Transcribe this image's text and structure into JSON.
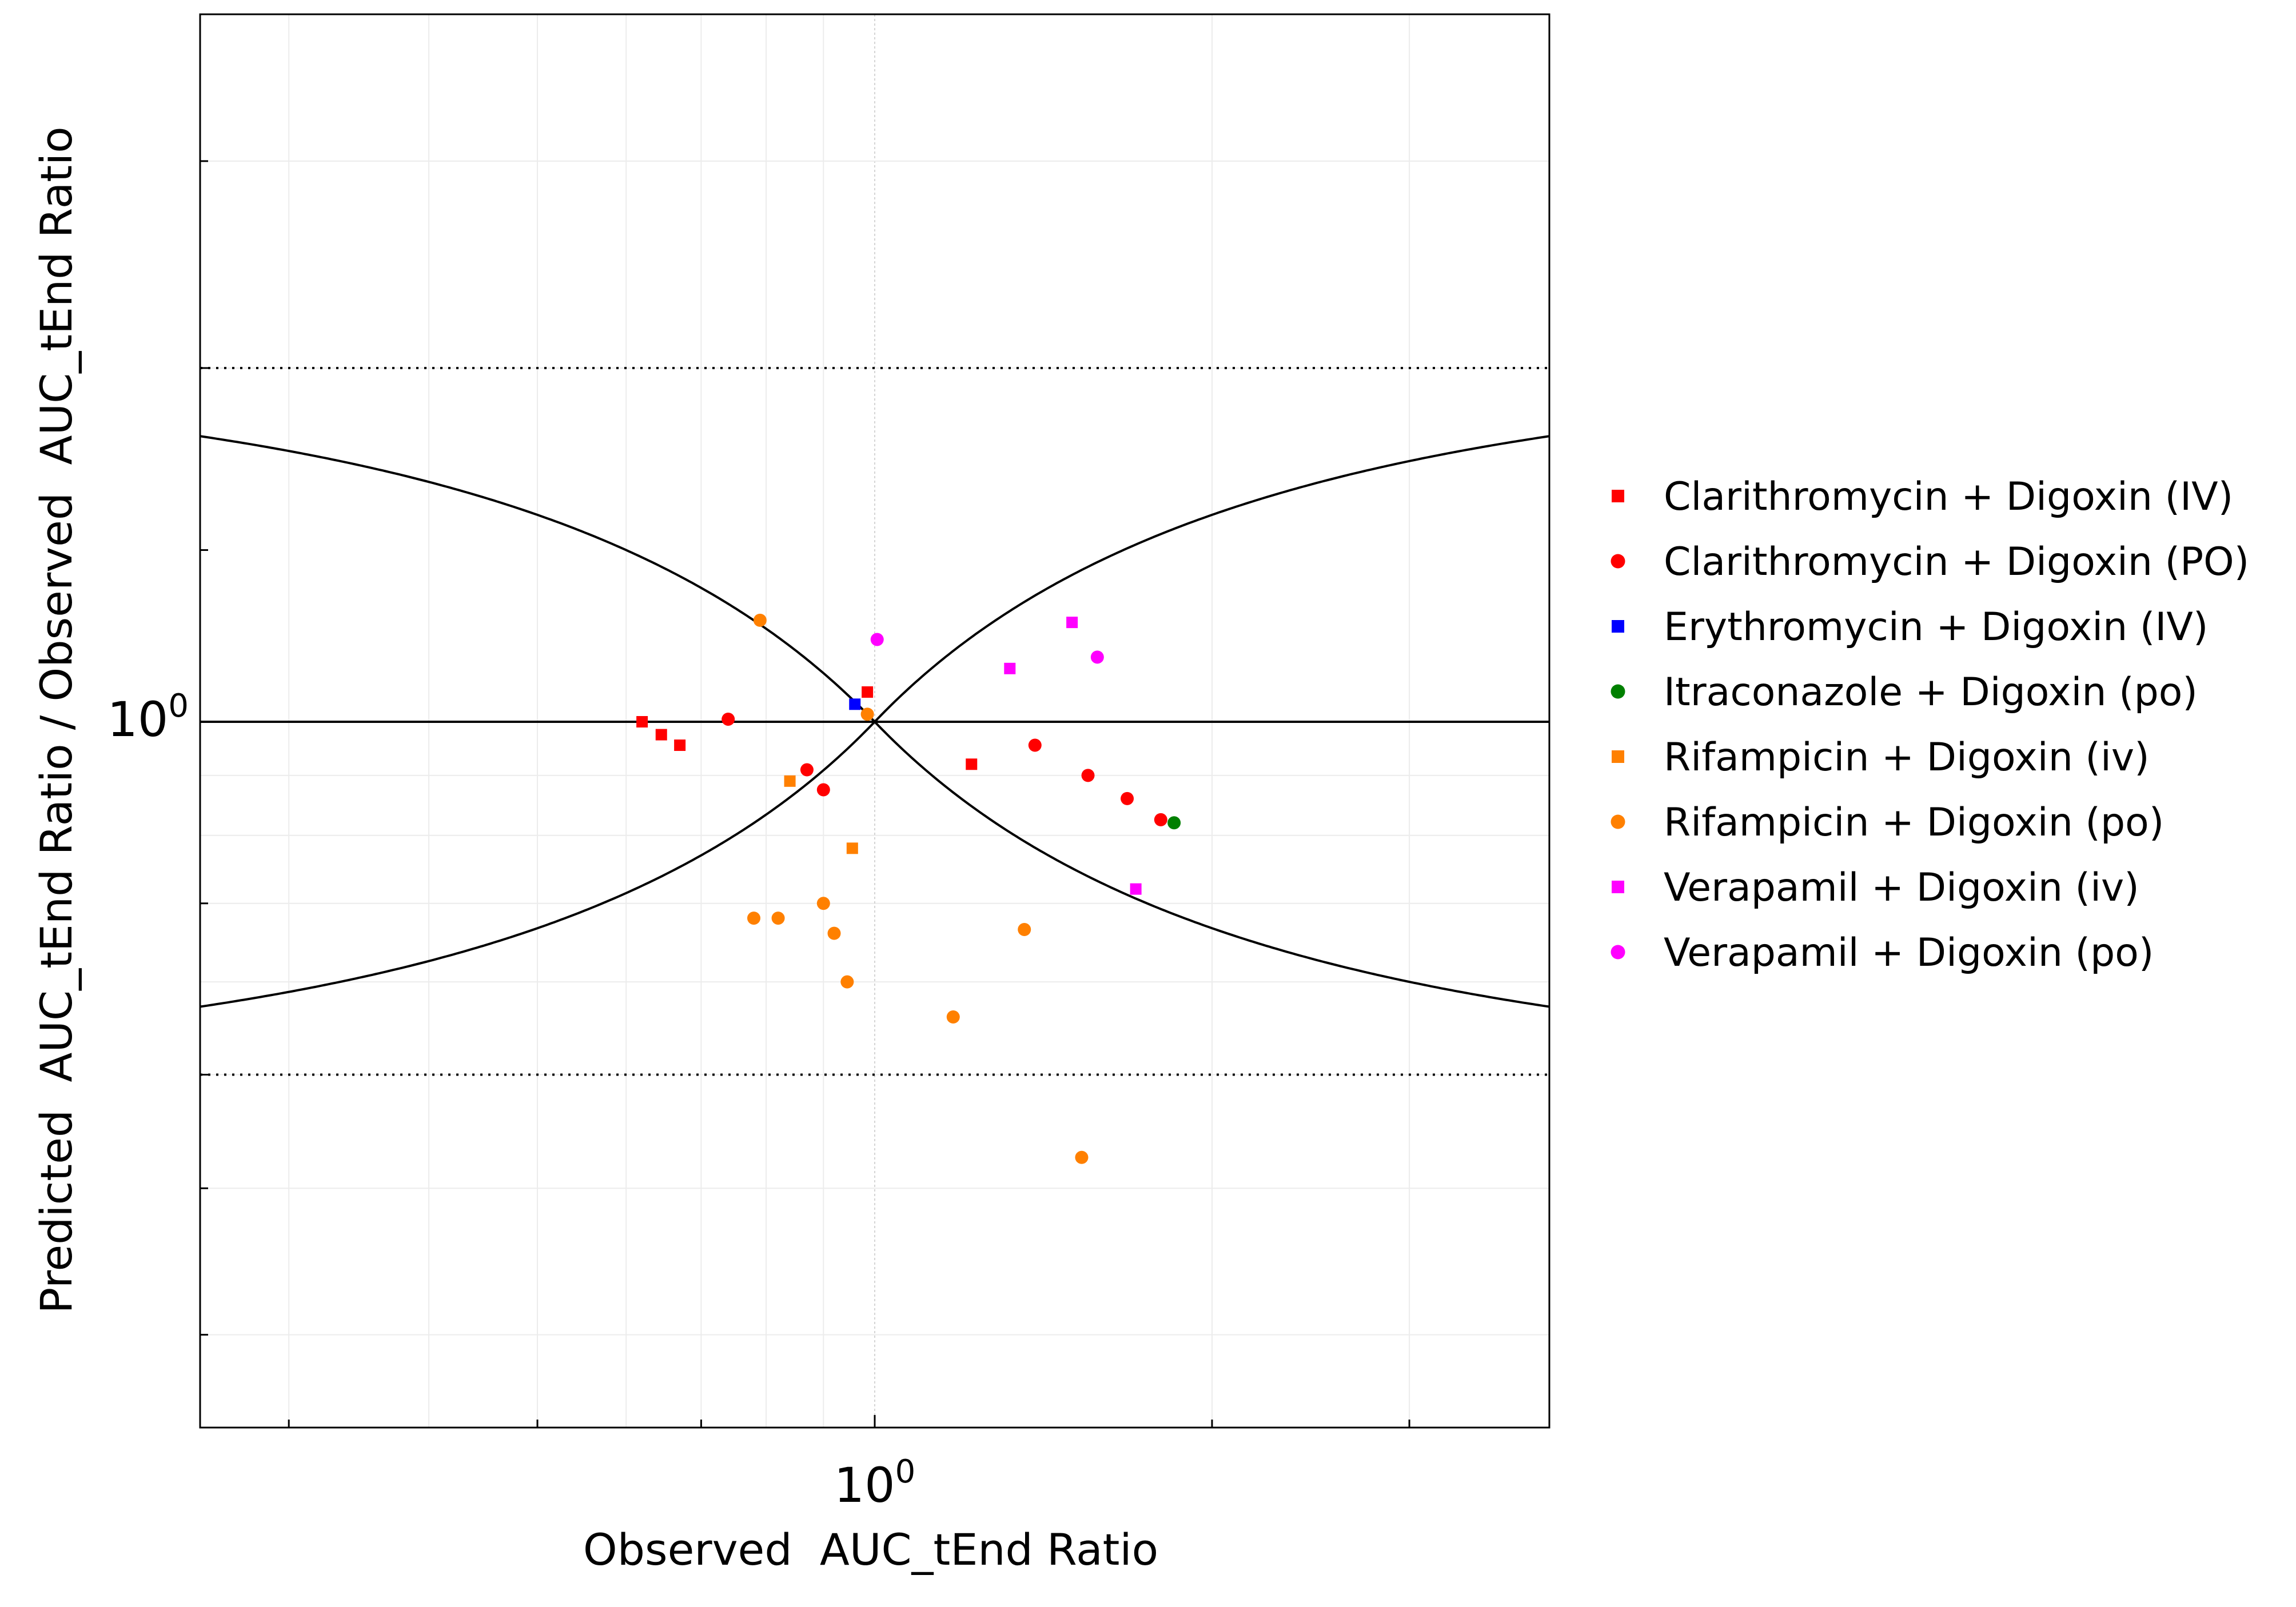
{
  "chart_data": {
    "type": "scatter",
    "xlabel": "Observed  AUC_tEnd Ratio",
    "ylabel": "Predicted  AUC_tEnd Ratio / Observed  AUC_tEnd Ratio",
    "x_scale": "log",
    "y_scale": "log",
    "xlim": [
      0.25,
      4.0
    ],
    "ylim": [
      0.25,
      4.0
    ],
    "x_major_tick": {
      "value": 1,
      "label_base": "10",
      "label_exp": "0"
    },
    "y_major_tick": {
      "value": 1,
      "label_base": "10",
      "label_exp": "0"
    },
    "reference_lines": {
      "identity": 1,
      "dotted_limits": [
        0.5,
        2.0
      ],
      "guest_curves": true
    },
    "grid": true,
    "legend_position": "right",
    "series": [
      {
        "name": "Clarithromycin + Digoxin (IV)",
        "marker": "square",
        "color": "#ff0000",
        "points": [
          [
            0.62,
            1.0
          ],
          [
            0.645,
            0.975
          ],
          [
            0.67,
            0.955
          ],
          [
            0.985,
            1.06
          ],
          [
            1.22,
            0.92
          ]
        ]
      },
      {
        "name": "Clarithromycin + Digoxin (PO)",
        "marker": "circle",
        "color": "#ff0000",
        "points": [
          [
            0.74,
            1.005
          ],
          [
            0.87,
            0.91
          ],
          [
            0.9,
            0.875
          ],
          [
            1.39,
            0.955
          ],
          [
            1.55,
            0.9
          ],
          [
            1.68,
            0.86
          ],
          [
            1.8,
            0.825
          ]
        ]
      },
      {
        "name": "Erythromycin + Digoxin (IV)",
        "marker": "square",
        "color": "#0000ff",
        "points": [
          [
            0.96,
            1.035
          ]
        ]
      },
      {
        "name": "Itraconazole + Digoxin (po)",
        "marker": "circle",
        "color": "#008000",
        "points": [
          [
            1.85,
            0.82
          ]
        ]
      },
      {
        "name": "Rifampicin + Digoxin (iv)",
        "marker": "square",
        "color": "#ff8000",
        "points": [
          [
            0.84,
            0.89
          ],
          [
            0.955,
            0.78
          ]
        ]
      },
      {
        "name": "Rifampicin + Digoxin (po)",
        "marker": "circle",
        "color": "#ff8000",
        "points": [
          [
            0.79,
            1.22
          ],
          [
            0.985,
            1.015
          ],
          [
            0.82,
            0.68
          ],
          [
            0.9,
            0.7
          ],
          [
            0.92,
            0.66
          ],
          [
            0.945,
            0.6
          ],
          [
            1.175,
            0.56
          ],
          [
            1.53,
            0.425
          ],
          [
            1.36,
            0.665
          ],
          [
            0.78,
            0.68
          ]
        ]
      },
      {
        "name": "Verapamil + Digoxin (iv)",
        "marker": "square",
        "color": "#ff00ff",
        "points": [
          [
            1.5,
            1.215
          ],
          [
            1.32,
            1.11
          ],
          [
            1.71,
            0.72
          ]
        ]
      },
      {
        "name": "Verapamil + Digoxin (po)",
        "marker": "circle",
        "color": "#ff00ff",
        "points": [
          [
            1.005,
            1.175
          ],
          [
            1.58,
            1.135
          ]
        ]
      }
    ]
  }
}
